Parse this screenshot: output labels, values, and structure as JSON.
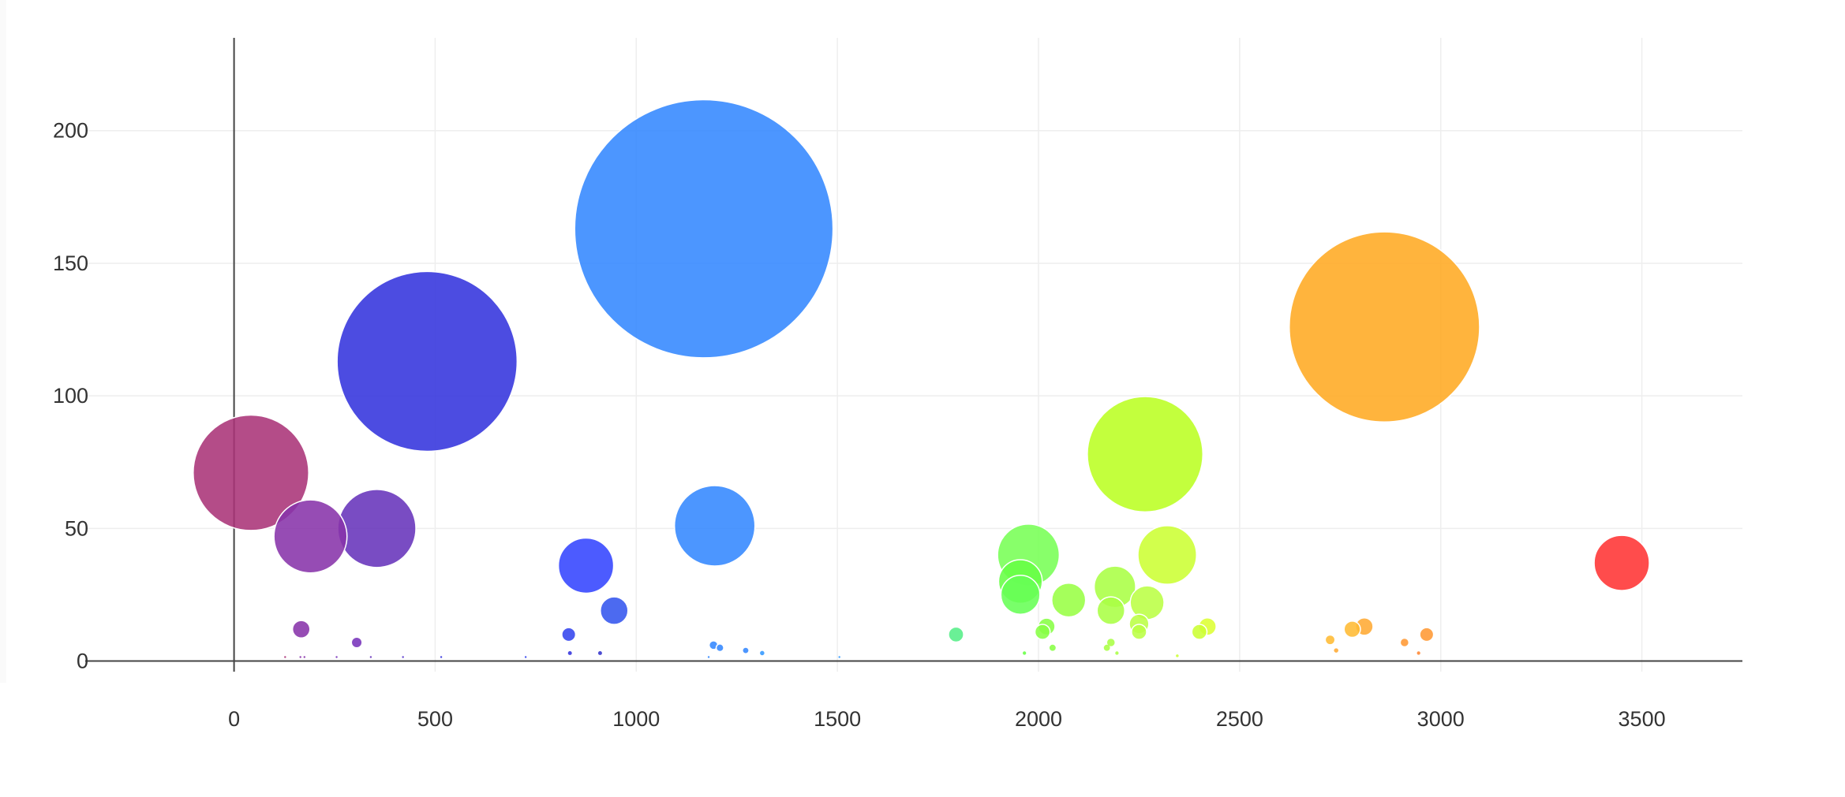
{
  "chart_data": {
    "type": "scatter",
    "variant": "bubble",
    "title": "",
    "xlabel": "",
    "ylabel": "",
    "xlim": [
      -370,
      3750
    ],
    "ylim": [
      -4,
      235
    ],
    "x_ticks": [
      0,
      500,
      1000,
      1500,
      2000,
      2500,
      3000,
      3500
    ],
    "y_ticks": [
      0,
      50,
      100,
      150,
      200
    ],
    "x_tick_labels": [
      "0",
      "500",
      "1000",
      "1500",
      "2000",
      "2500",
      "3000",
      "3500"
    ],
    "y_tick_labels": [
      "0",
      "50",
      "100",
      "150",
      "200"
    ],
    "grid": true,
    "legend": "none",
    "colors": {
      "grid": "#eeeeee",
      "axis": "#444444",
      "tick_label": "#333333",
      "bubble_outline": "#ffffff"
    },
    "size_scale": "radius proportional to sqrt(size)",
    "points": [
      {
        "x": 42,
        "y": 71,
        "size": 70,
        "color": "#aa3377"
      },
      {
        "x": 190,
        "y": 47,
        "size": 28,
        "color": "#8833aa"
      },
      {
        "x": 355,
        "y": 50,
        "size": 32,
        "color": "#6633bb"
      },
      {
        "x": 480,
        "y": 113,
        "size": 170,
        "color": "#3333dd"
      },
      {
        "x": 167,
        "y": 12,
        "size": 1.6,
        "color": "#8833aa"
      },
      {
        "x": 305,
        "y": 7,
        "size": 0.6,
        "color": "#7733bb"
      },
      {
        "x": 875,
        "y": 36,
        "size": 16,
        "color": "#3344ff"
      },
      {
        "x": 945,
        "y": 19,
        "size": 4,
        "color": "#3355ee"
      },
      {
        "x": 832,
        "y": 10,
        "size": 1,
        "color": "#3344ee"
      },
      {
        "x": 1168,
        "y": 163,
        "size": 350,
        "color": "#3388ff"
      },
      {
        "x": 1195,
        "y": 51,
        "size": 34,
        "color": "#3388ff"
      },
      {
        "x": 1192,
        "y": 6,
        "size": 0.4,
        "color": "#3388ff"
      },
      {
        "x": 1208,
        "y": 5,
        "size": 0.3,
        "color": "#3388ff"
      },
      {
        "x": 1272,
        "y": 4,
        "size": 0.15,
        "color": "#3388ff"
      },
      {
        "x": 1313,
        "y": 3,
        "size": 0.1,
        "color": "#3399ff"
      },
      {
        "x": 1795,
        "y": 10,
        "size": 1.2,
        "color": "#55ee88"
      },
      {
        "x": 1975,
        "y": 40,
        "size": 20,
        "color": "#77ff55"
      },
      {
        "x": 1955,
        "y": 25,
        "size": 8,
        "color": "#66ff55"
      },
      {
        "x": 1955,
        "y": 30,
        "size": 10,
        "color": "#66ff44"
      },
      {
        "x": 2075,
        "y": 23,
        "size": 6,
        "color": "#99ff44"
      },
      {
        "x": 2020,
        "y": 13,
        "size": 1.5,
        "color": "#88ff44"
      },
      {
        "x": 2010,
        "y": 11,
        "size": 1.2,
        "color": "#88ff44"
      },
      {
        "x": 2035,
        "y": 5,
        "size": 0.2,
        "color": "#88ff44"
      },
      {
        "x": 2190,
        "y": 28,
        "size": 9,
        "color": "#aaff44"
      },
      {
        "x": 2180,
        "y": 19,
        "size": 4,
        "color": "#aaff44"
      },
      {
        "x": 2180,
        "y": 7,
        "size": 0.4,
        "color": "#aaff44"
      },
      {
        "x": 2170,
        "y": 5,
        "size": 0.2,
        "color": "#aaff44"
      },
      {
        "x": 2250,
        "y": 14,
        "size": 2,
        "color": "#bbff44"
      },
      {
        "x": 2250,
        "y": 11,
        "size": 1.2,
        "color": "#bbff44"
      },
      {
        "x": 2270,
        "y": 22,
        "size": 6,
        "color": "#bbff44"
      },
      {
        "x": 2265,
        "y": 78,
        "size": 70,
        "color": "#bbff22"
      },
      {
        "x": 2320,
        "y": 40,
        "size": 18,
        "color": "#ccff33"
      },
      {
        "x": 2400,
        "y": 11,
        "size": 1.2,
        "color": "#ccff33"
      },
      {
        "x": 2420,
        "y": 13,
        "size": 1.6,
        "color": "#ddff33"
      },
      {
        "x": 2860,
        "y": 126,
        "size": 190,
        "color": "#ffaa22"
      },
      {
        "x": 2725,
        "y": 8,
        "size": 0.5,
        "color": "#ffbb33"
      },
      {
        "x": 2740,
        "y": 4,
        "size": 0.1,
        "color": "#ffaa33"
      },
      {
        "x": 2780,
        "y": 12,
        "size": 1.4,
        "color": "#ffbb33"
      },
      {
        "x": 2810,
        "y": 13,
        "size": 1.6,
        "color": "#ffaa33"
      },
      {
        "x": 2910,
        "y": 7,
        "size": 0.4,
        "color": "#ff9933"
      },
      {
        "x": 2965,
        "y": 10,
        "size": 1,
        "color": "#ff9933"
      },
      {
        "x": 3450,
        "y": 37,
        "size": 16,
        "color": "#ff3333"
      },
      {
        "x": 127,
        "y": 1.5,
        "size": 0.02,
        "color": "#aa3377"
      },
      {
        "x": 165,
        "y": 1.5,
        "size": 0.02,
        "color": "#8833aa"
      },
      {
        "x": 175,
        "y": 1.5,
        "size": 0.02,
        "color": "#8833aa"
      },
      {
        "x": 255,
        "y": 1.5,
        "size": 0.02,
        "color": "#7733bb"
      },
      {
        "x": 340,
        "y": 1.5,
        "size": 0.02,
        "color": "#6633bb"
      },
      {
        "x": 420,
        "y": 1.5,
        "size": 0.02,
        "color": "#5533cc"
      },
      {
        "x": 515,
        "y": 1.5,
        "size": 0.02,
        "color": "#3333dd"
      },
      {
        "x": 725,
        "y": 1.5,
        "size": 0.02,
        "color": "#3344ee"
      },
      {
        "x": 835,
        "y": 3,
        "size": 0.08,
        "color": "#3333dd"
      },
      {
        "x": 910,
        "y": 3,
        "size": 0.08,
        "color": "#3333cc"
      },
      {
        "x": 1180,
        "y": 1.5,
        "size": 0.02,
        "color": "#3388ff"
      },
      {
        "x": 1505,
        "y": 1.5,
        "size": 0.02,
        "color": "#3399ff"
      },
      {
        "x": 1965,
        "y": 3,
        "size": 0.06,
        "color": "#66ff44"
      },
      {
        "x": 2195,
        "y": 3,
        "size": 0.06,
        "color": "#aaff44"
      },
      {
        "x": 2345,
        "y": 2,
        "size": 0.04,
        "color": "#ccff33"
      },
      {
        "x": 2945,
        "y": 3,
        "size": 0.06,
        "color": "#ff8833"
      }
    ]
  }
}
